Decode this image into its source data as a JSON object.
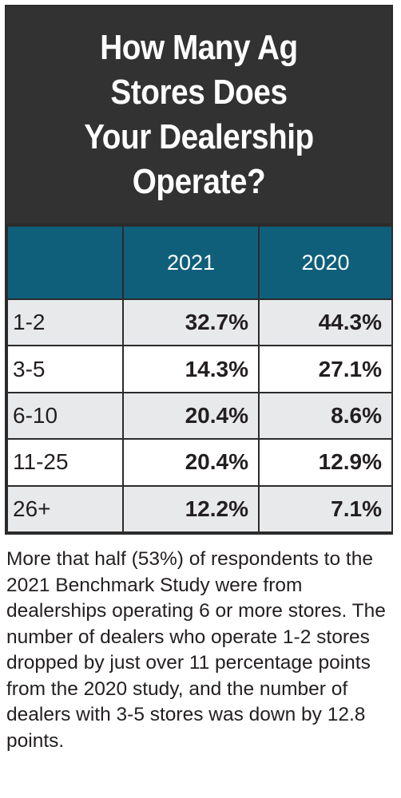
{
  "chart_data": {
    "type": "table",
    "title": "How Many Ag Stores Does Your Dealership Operate?",
    "columns": [
      "",
      "2021",
      "2020"
    ],
    "categories": [
      "1-2",
      "3-5",
      "6-10",
      "11-25",
      "26+"
    ],
    "series": [
      {
        "name": "2021",
        "values": [
          32.7,
          14.3,
          20.4,
          20.4,
          12.2
        ]
      },
      {
        "name": "2020",
        "values": [
          44.3,
          27.1,
          8.6,
          12.9,
          7.1
        ]
      }
    ],
    "rows": [
      {
        "label": "1-2",
        "v2021": "32.7%",
        "v2020": "44.3%"
      },
      {
        "label": "3-5",
        "v2021": "14.3%",
        "v2020": "27.1%"
      },
      {
        "label": "6-10",
        "v2021": "20.4%",
        "v2020": "8.6%"
      },
      {
        "label": "11-25",
        "v2021": "20.4%",
        "v2020": "12.9%"
      },
      {
        "label": "26+",
        "v2021": "12.2%",
        "v2020": "7.1%"
      }
    ],
    "caption": "More that half (53%) of respondents to the 2021 Benchmark Study were from dealerships operating 6 or more stores. The number of dealers who operate 1-2 stores dropped by just over 11 percentage points from the 2020 study, and the number of dealers with 3-5 stores was down by 12.8 points."
  },
  "colors": {
    "title_bg": "#333233",
    "header_bg": "#0f5f7b",
    "shaded_row": "#e8e9eb"
  }
}
